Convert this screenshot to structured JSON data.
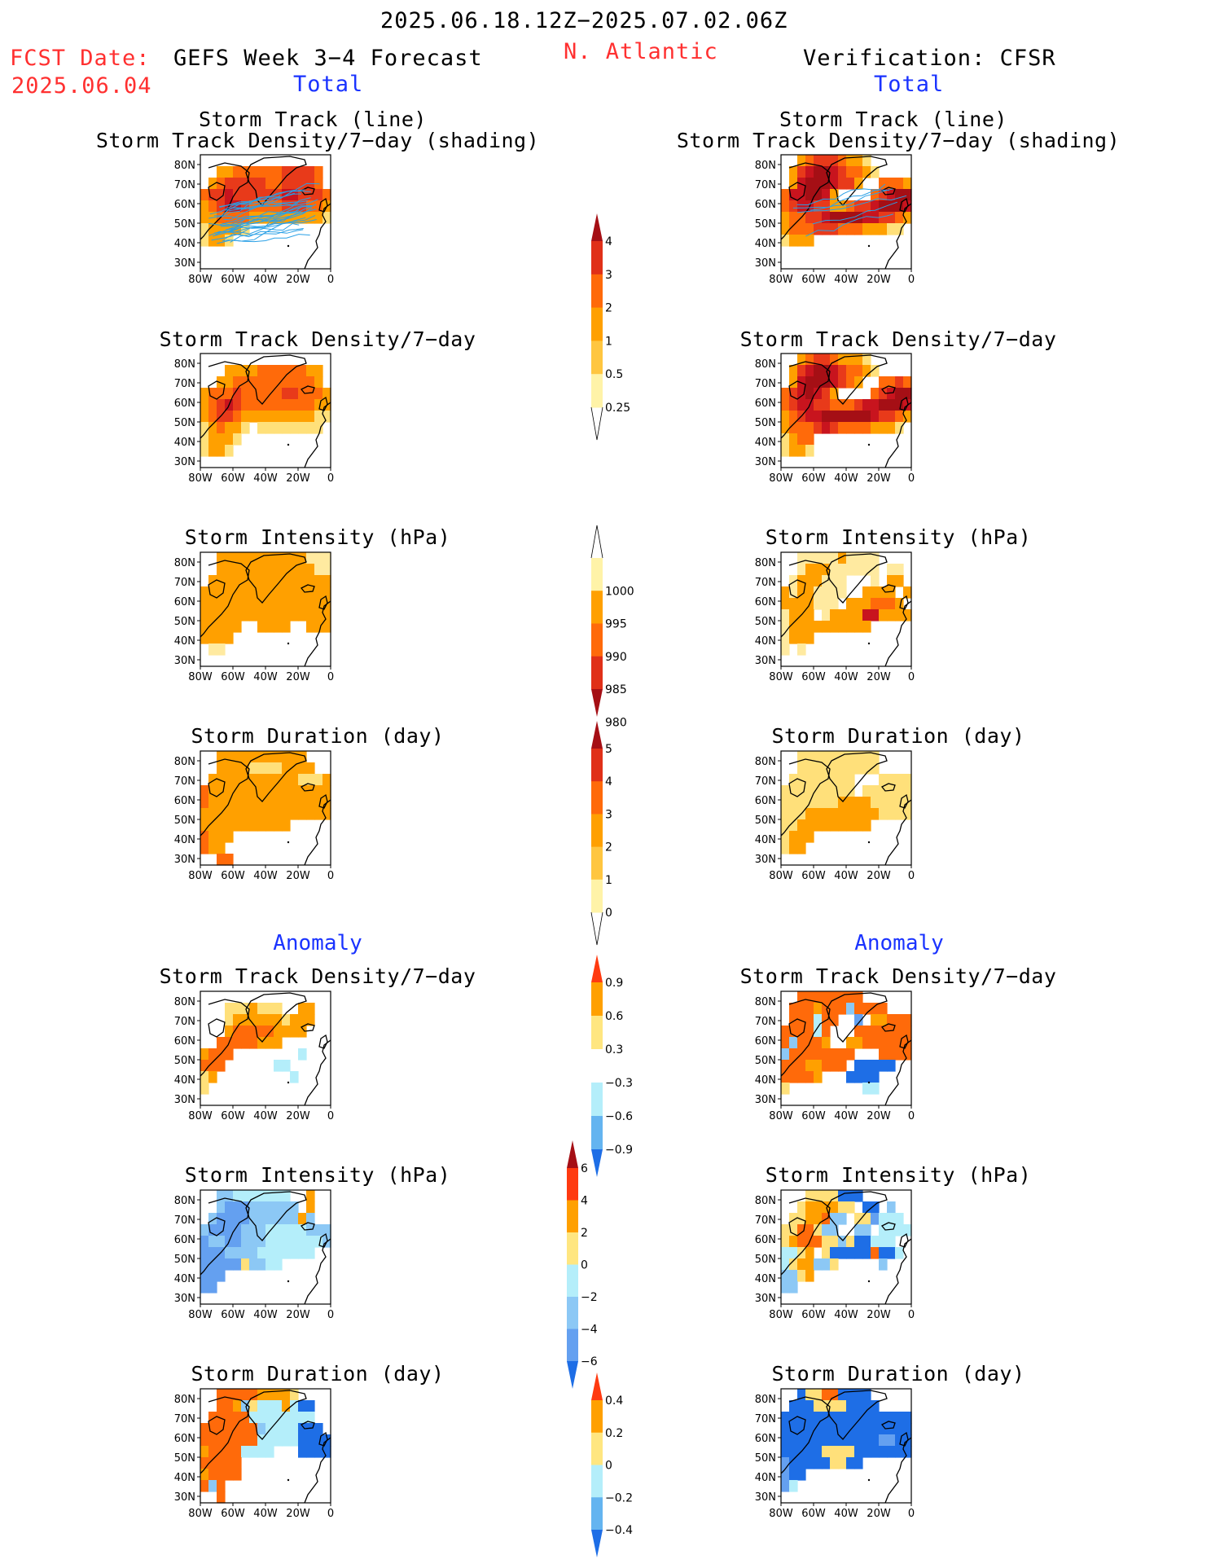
{
  "header": {
    "period": "2025.06.18.12Z−2025.07.02.06Z",
    "fcst_label": "FCST Date:",
    "fcst_date": "2025.06.04",
    "model": "GEFS Week 3−4 Forecast",
    "region": "N. Atlantic",
    "verification": "Verification: CFSR",
    "left_sub": "Total",
    "right_sub": "Total"
  },
  "sections": {
    "left_anomaly": "Anomaly",
    "right_anomaly": "Anomaly"
  },
  "panel_titles": {
    "track_line": "Storm Track (line)",
    "track_shading": "Storm Track Density/7−day (shading)",
    "density": "Storm Track Density/7−day",
    "intensity": "Storm Intensity (hPa)",
    "duration": "Storm Duration (day)"
  },
  "axes": {
    "lon_ticks": [
      "80W",
      "60W",
      "40W",
      "20W",
      "0"
    ],
    "lat_ticks": [
      "80N",
      "70N",
      "60N",
      "50N",
      "40N",
      "30N"
    ]
  },
  "colorbars": {
    "density": {
      "labels": [
        "4",
        "3",
        "2",
        "1",
        "0.5",
        "0.25"
      ],
      "colors": [
        "#a50f15",
        "#e03018",
        "#ff6a0a",
        "#ffa000",
        "#ffc640",
        "#fff3a8"
      ]
    },
    "intensity": {
      "labels": [
        "1000",
        "995",
        "990",
        "985",
        "980"
      ],
      "colors": [
        "#fff3a8",
        "#ffa000",
        "#ff6a0a",
        "#e03018",
        "#a50f15"
      ]
    },
    "duration": {
      "labels": [
        "5",
        "4",
        "3",
        "2",
        "1",
        "0"
      ],
      "colors": [
        "#a50f15",
        "#e03018",
        "#ff6a0a",
        "#ffa000",
        "#ffc640",
        "#fff3a8"
      ]
    },
    "anom_density": {
      "labels": [
        "0.9",
        "0.6",
        "0.3",
        "−0.3",
        "−0.6",
        "−0.9"
      ],
      "colors": [
        "#ff3a10",
        "#ffa000",
        "#ffe680",
        "#ffffff",
        "#b4eefa",
        "#64b4f0",
        "#1e6ee6"
      ]
    },
    "anom_intensity": {
      "labels": [
        "6",
        "4",
        "2",
        "0",
        "−2",
        "−4",
        "−6"
      ],
      "colors": [
        "#a50f15",
        "#ff3a10",
        "#ffa000",
        "#ffe680",
        "#b4eefa",
        "#8cc8f5",
        "#64a0f0",
        "#1e6ee6"
      ]
    },
    "anom_duration": {
      "labels": [
        "0.4",
        "0.2",
        "0",
        "−0.2",
        "−0.4"
      ],
      "colors": [
        "#ff3a10",
        "#ffa000",
        "#ffe680",
        "#b4eefa",
        "#64b4f0",
        "#1e6ee6"
      ]
    }
  },
  "chart_data": [
    {
      "type": "heatmap",
      "panel": "gefs-total-track",
      "title": "Storm Track (line) / Storm Track Density/7−day (shading)",
      "grid": [
        "................",
        "..2233333344443.",
        ".23444443344443.",
        "3445444444554443",
        "2345543333444332",
        "2233332222222221",
        "122221..........",
        "1221............",
        "................",
        "................"
      ]
    },
    {
      "type": "heatmap",
      "panel": "cfsr-total-track",
      "title": "Storm Track (line) / Storm Track Density/7−day (shading)",
      "grid": [
        "..234443221.....",
        ".24566543321....",
        ".256665442..3332",
        "3556652....34566",
        "34554422344566653",
        "2334456666554432",
        "233344433322211.",
        "1222............",
        "................",
        "................"
      ]
    },
    {
      "type": "heatmap",
      "panel": "gefs-total-density",
      "title": "Storm Track Density/7−day",
      "grid": [
        "................",
        "...222233333322.",
        "..2233333333332.",
        "2333433333443332",
        "2345433333333322",
        "2344322222222211",
        "123221.11111111.",
        "12221...........",
        "1221............",
        "................"
      ]
    },
    {
      "type": "heatmap",
      "panel": "cfsr-total-density",
      "title": "Storm Track Density/7−day",
      "grid": [
        "..234432221.....",
        ".24566543321....",
        ".256665432..3343",
        "3456542....34566",
        "34554433345566653",
        "2345566666654432",
        "233345433332221.",
        "1233............",
        "1221............",
        "................"
      ]
    },
    {
      "type": "heatmap",
      "panel": "gefs-total-intensity",
      "title": "Storm Intensity (hPa)",
      "grid": [
        "..22222222222111",
        "..22222222222211",
        ".222222222222222",
        "2222222222222222",
        "2222222222222222",
        "2222222222222222",
        "22222..2222..222",
        "2222............",
        ".11.............",
        "................"
      ]
    },
    {
      "type": "heatmap",
      "panel": "cfsr-total-intensity",
      "title": "Storm Intensity (hPa)",
      "grid": [
        "..1111121111....",
        "..1222111111.11.",
        ".1222111...1.22.",
        "21221111..2222.2",
        "2222111.2223332.",
        "1222.12222442222",
        "12222222222.....",
        "1222............",
        "1.1.............",
        "................"
      ]
    },
    {
      "type": "heatmap",
      "panel": "gefs-total-duration",
      "title": "Storm Duration (day)",
      "grid": [
        "..22222222222...",
        "..222211112222..",
        ".222222222221112",
        "3222222222222222",
        "3222222222222222",
        "2222222222222222",
        "22222222222.....",
        "3222............",
        "322.............",
        "..33............"
      ]
    },
    {
      "type": "heatmap",
      "panel": "cfsr-total-duration",
      "title": "Storm Duration (day)",
      "grid": [
        "..1111111111....",
        "..1111111111....",
        ".11111111...1111",
        "111111111.111111",
        "1111111222211111",
        "1112222222221111",
        "11222222222.....",
        "1222............",
        "122.............",
        "................"
      ]
    },
    {
      "type": "heatmap",
      "panel": "gefs-anom-density",
      "title": "Storm Track Density/7−day (anomaly)",
      "grid": [
        "................",
        "...1112111..22..",
        "...12222221222..",
        "...2333332222...",
        "..33333222......",
        "2333........d...",
        "333......dd.....",
        "12.........d....",
        "1...............",
        "................"
      ]
    },
    {
      "type": "heatmap",
      "panel": "cfsr-anom-density",
      "title": "Storm Track Density/7−day (anomaly)",
      "grid": [
        "..33333333......",
        ".3332333e3333...",
        ".333d33..f.22333",
        "3333d3...3333333",
        "3e3332..22333333",
        "e33333333...3333",
        "33322333.ggggg..",
        "33332...gggg....",
        "1.........dd....",
        "................"
      ]
    },
    {
      "type": "heatmap",
      "panel": "gefs-anom-intensity",
      "title": "Storm Intensity (hPa) (anomaly)",
      "grid": [
        "..eeddddddd..2..",
        "..efffeeeeee.2..",
        ".effffeeeeee2e..",
        "effffeeedddddeee",
        "feeffeeeddddddde",
        "fffeeeeddddddd..",
        "fffff1eedd......",
        "fff.............",
        "ff..............",
        "................"
      ]
    },
    {
      "type": "heatmap",
      "panel": "cfsr-anom-intensity",
      "title": "Storm Intensity (hPa) (anomaly)",
      "grid": [
        "...1111ggg......",
        "..1222211.gg.e..",
        ".11223ee.11fddd.",
        "11331ee..ee.dddd",
        "1233311e1ggddd..",
        "dd12.1ggggg3ggd.",
        "d122ee1.....e...",
        "ee12............",
        "ee..............",
        "................"
      ]
    },
    {
      "type": "heatmap",
      "panel": "gefs-anom-duration",
      "title": "Storm Duration (day) (anomaly)",
      "grid": [
        "..3333322221....",
        "..332e1ddd2dgg..",
        ".33333dddddddd..",
        "3333333eddddggg.",
        "3333333dddddgggg",
        "23333dddd...gggg",
        "33333...........",
        "23333...........",
        "3e3.............",
        "..3............."
      ]
    },
    {
      "type": "heatmap",
      "panel": "cfsr-anom-duration",
      "title": "Storm Duration (day) (anomaly)",
      "grid": [
        "..g1133gggg.....",
        ".ggg1111gggg....",
        "gggggggggggggggg",
        "gggggggggggggggg",
        "ggggggggggggffgg",
        "ggggg1111ggggggg",
        "fggggg11gg......",
        "fgg.............",
        "fd..............",
        "................"
      ]
    }
  ]
}
